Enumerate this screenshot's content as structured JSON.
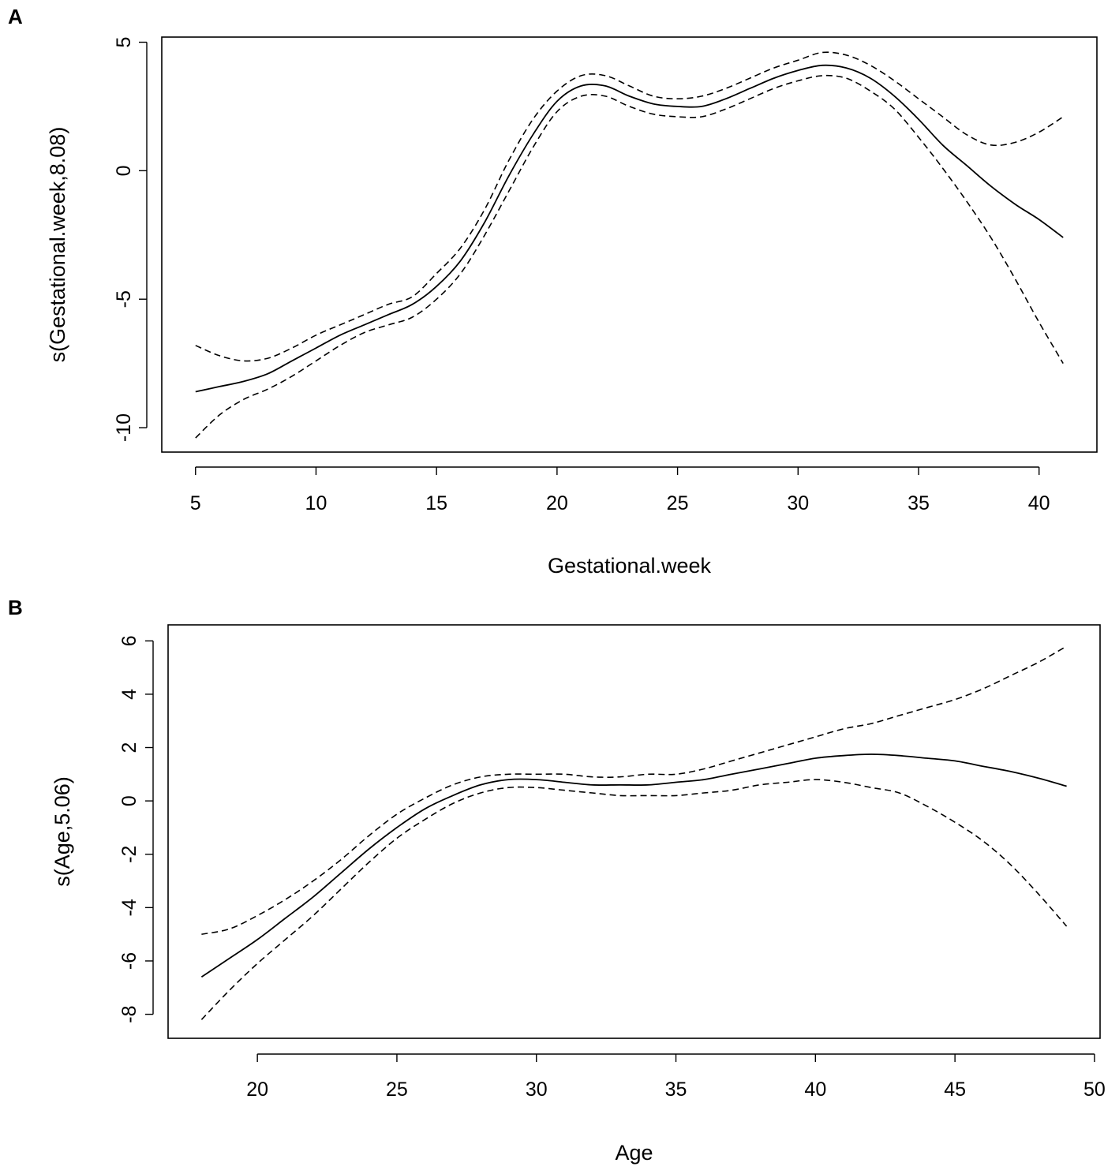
{
  "chart_data": [
    {
      "type": "line",
      "panel": "A",
      "title": "",
      "xlabel": "Gestational.week",
      "ylabel": "s(Gestational.week,8.08)",
      "xlim": [
        3.6,
        42.4
      ],
      "ylim": [
        -10.95,
        5.2
      ],
      "xticks": [
        5,
        10,
        15,
        20,
        25,
        30,
        35,
        40
      ],
      "yticks": [
        -10,
        -5,
        0,
        5
      ],
      "grid": false,
      "legend": "none",
      "series": [
        {
          "name": "fit",
          "style": "solid",
          "x": [
            5,
            6,
            7,
            8,
            9,
            10,
            11,
            12,
            13,
            14,
            15,
            16,
            17,
            18,
            19,
            20,
            21,
            22,
            23,
            24,
            25,
            26,
            27,
            28,
            29,
            30,
            31,
            32,
            33,
            34,
            35,
            36,
            37,
            38,
            39,
            40,
            41
          ],
          "y": [
            -8.6,
            -8.4,
            -8.2,
            -7.9,
            -7.4,
            -6.9,
            -6.4,
            -6.0,
            -5.6,
            -5.2,
            -4.5,
            -3.5,
            -2.0,
            -0.2,
            1.4,
            2.7,
            3.3,
            3.3,
            2.9,
            2.6,
            2.5,
            2.5,
            2.8,
            3.2,
            3.6,
            3.9,
            4.1,
            4.0,
            3.6,
            2.9,
            2.0,
            1.0,
            0.2,
            -0.6,
            -1.3,
            -1.9,
            -2.6
          ]
        },
        {
          "name": "upper",
          "style": "dashed",
          "x": [
            5,
            6,
            7,
            8,
            9,
            10,
            11,
            12,
            13,
            14,
            15,
            16,
            17,
            18,
            19,
            20,
            21,
            22,
            23,
            24,
            25,
            26,
            27,
            28,
            29,
            30,
            31,
            32,
            33,
            34,
            35,
            36,
            37,
            38,
            39,
            40,
            41
          ],
          "y": [
            -6.8,
            -7.2,
            -7.4,
            -7.3,
            -6.9,
            -6.4,
            -6.0,
            -5.6,
            -5.2,
            -4.9,
            -4.0,
            -3.0,
            -1.5,
            0.4,
            2.0,
            3.1,
            3.7,
            3.7,
            3.3,
            2.9,
            2.8,
            2.9,
            3.2,
            3.6,
            4.0,
            4.3,
            4.6,
            4.5,
            4.1,
            3.5,
            2.8,
            2.1,
            1.4,
            1.0,
            1.1,
            1.5,
            2.1
          ]
        },
        {
          "name": "lower",
          "style": "dashed",
          "x": [
            5,
            6,
            7,
            8,
            9,
            10,
            11,
            12,
            13,
            14,
            15,
            16,
            17,
            18,
            19,
            20,
            21,
            22,
            23,
            24,
            25,
            26,
            27,
            28,
            29,
            30,
            31,
            32,
            33,
            34,
            35,
            36,
            37,
            38,
            39,
            40,
            41
          ],
          "y": [
            -10.4,
            -9.5,
            -8.9,
            -8.5,
            -8.0,
            -7.4,
            -6.8,
            -6.3,
            -6.0,
            -5.7,
            -5.0,
            -4.0,
            -2.5,
            -0.8,
            0.9,
            2.3,
            2.9,
            2.9,
            2.5,
            2.2,
            2.1,
            2.1,
            2.4,
            2.8,
            3.2,
            3.5,
            3.7,
            3.6,
            3.1,
            2.4,
            1.3,
            0.1,
            -1.2,
            -2.6,
            -4.2,
            -5.9,
            -7.5
          ]
        }
      ]
    },
    {
      "type": "line",
      "panel": "B",
      "title": "",
      "xlabel": "Age",
      "ylabel": "s(Age,5.06)",
      "xlim": [
        16.8,
        50.2
      ],
      "ylim": [
        -8.9,
        6.6
      ],
      "xticks": [
        20,
        25,
        30,
        35,
        40,
        45,
        50
      ],
      "yticks": [
        -8,
        -6,
        -4,
        -2,
        0,
        2,
        4,
        6
      ],
      "grid": false,
      "legend": "none",
      "series": [
        {
          "name": "fit",
          "style": "solid",
          "x": [
            18,
            19,
            20,
            21,
            22,
            23,
            24,
            25,
            26,
            27,
            28,
            29,
            30,
            31,
            32,
            33,
            34,
            35,
            36,
            37,
            38,
            39,
            40,
            41,
            42,
            43,
            44,
            45,
            46,
            47,
            48,
            49
          ],
          "y": [
            -6.6,
            -5.9,
            -5.2,
            -4.4,
            -3.6,
            -2.7,
            -1.8,
            -1.0,
            -0.3,
            0.2,
            0.6,
            0.8,
            0.8,
            0.7,
            0.6,
            0.6,
            0.6,
            0.7,
            0.8,
            1.0,
            1.2,
            1.4,
            1.6,
            1.7,
            1.75,
            1.7,
            1.6,
            1.5,
            1.3,
            1.1,
            0.85,
            0.55
          ]
        },
        {
          "name": "upper",
          "style": "dashed",
          "x": [
            18,
            19,
            20,
            21,
            22,
            23,
            24,
            25,
            26,
            27,
            28,
            29,
            30,
            31,
            32,
            33,
            34,
            35,
            36,
            37,
            38,
            39,
            40,
            41,
            42,
            43,
            44,
            45,
            46,
            47,
            48,
            49
          ],
          "y": [
            -5.0,
            -4.8,
            -4.3,
            -3.7,
            -3.0,
            -2.2,
            -1.3,
            -0.5,
            0.1,
            0.6,
            0.9,
            1.0,
            1.0,
            1.0,
            0.9,
            0.9,
            1.0,
            1.0,
            1.2,
            1.5,
            1.8,
            2.1,
            2.4,
            2.7,
            2.9,
            3.2,
            3.5,
            3.8,
            4.2,
            4.7,
            5.2,
            5.8
          ]
        },
        {
          "name": "lower",
          "style": "dashed",
          "x": [
            18,
            19,
            20,
            21,
            22,
            23,
            24,
            25,
            26,
            27,
            28,
            29,
            30,
            31,
            32,
            33,
            34,
            35,
            36,
            37,
            38,
            39,
            40,
            41,
            42,
            43,
            44,
            45,
            46,
            47,
            48,
            49
          ],
          "y": [
            -8.2,
            -7.1,
            -6.1,
            -5.2,
            -4.3,
            -3.3,
            -2.3,
            -1.4,
            -0.7,
            -0.1,
            0.3,
            0.5,
            0.5,
            0.4,
            0.3,
            0.2,
            0.2,
            0.2,
            0.3,
            0.4,
            0.6,
            0.7,
            0.8,
            0.7,
            0.5,
            0.3,
            -0.2,
            -0.8,
            -1.5,
            -2.4,
            -3.5,
            -4.7
          ]
        }
      ]
    }
  ]
}
